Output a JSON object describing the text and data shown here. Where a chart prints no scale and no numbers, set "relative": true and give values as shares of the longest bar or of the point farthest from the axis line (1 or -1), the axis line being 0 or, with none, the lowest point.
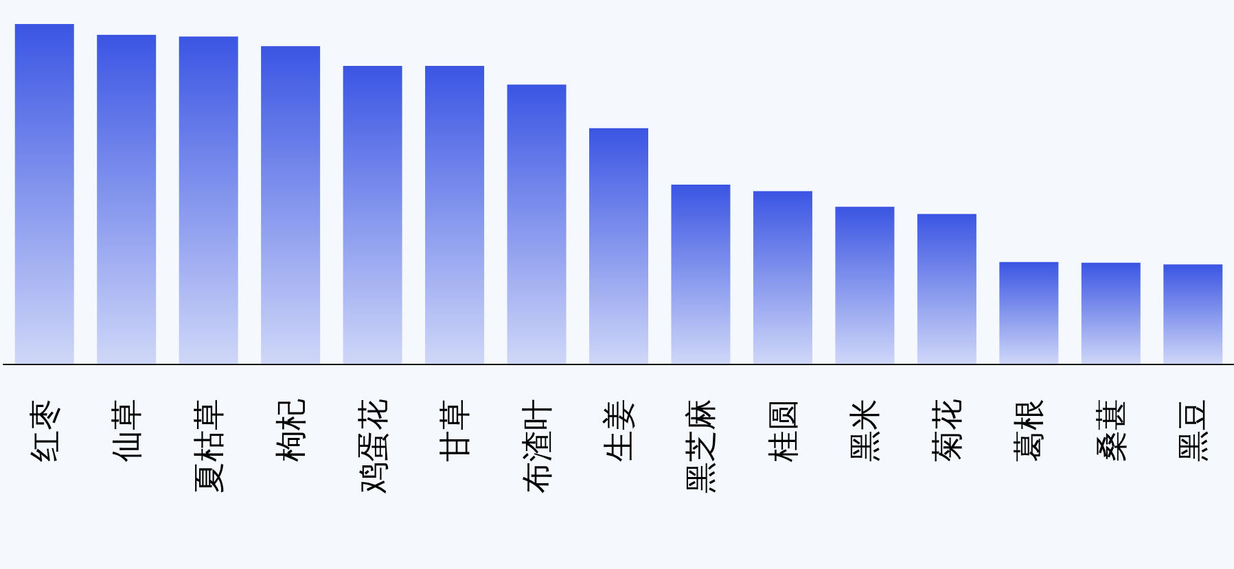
{
  "chart_data": {
    "type": "bar",
    "relative": true,
    "color": "#3b55e3",
    "categories": [
      "红枣",
      "仙草",
      "夏枯草",
      "枸杞",
      "鸡蛋花",
      "甘草",
      "布渣叶",
      "生姜",
      "黑芝麻",
      "桂圆",
      "黑米",
      "菊花",
      "葛根",
      "桑葚",
      "黑豆"
    ],
    "values": [
      1,
      0.968,
      0.963,
      0.935,
      0.877,
      0.877,
      0.822,
      0.694,
      0.528,
      0.509,
      0.463,
      0.442,
      0.301,
      0.299,
      0.294
    ]
  }
}
